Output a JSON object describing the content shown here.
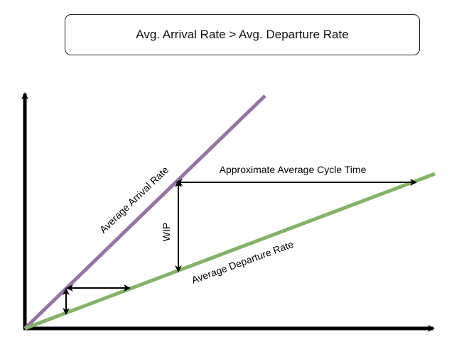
{
  "title": "Avg. Arrival Rate > Avg. Departure Rate",
  "labels": {
    "arrival": "Average Arrival Rate",
    "departure": "Average Departure Rate",
    "wip": "WIP",
    "cycle_time": "Approximate Average Cycle Time"
  },
  "colors": {
    "arrival_line": "#9673a6",
    "departure_line": "#82b366",
    "axes": "#000000"
  }
}
